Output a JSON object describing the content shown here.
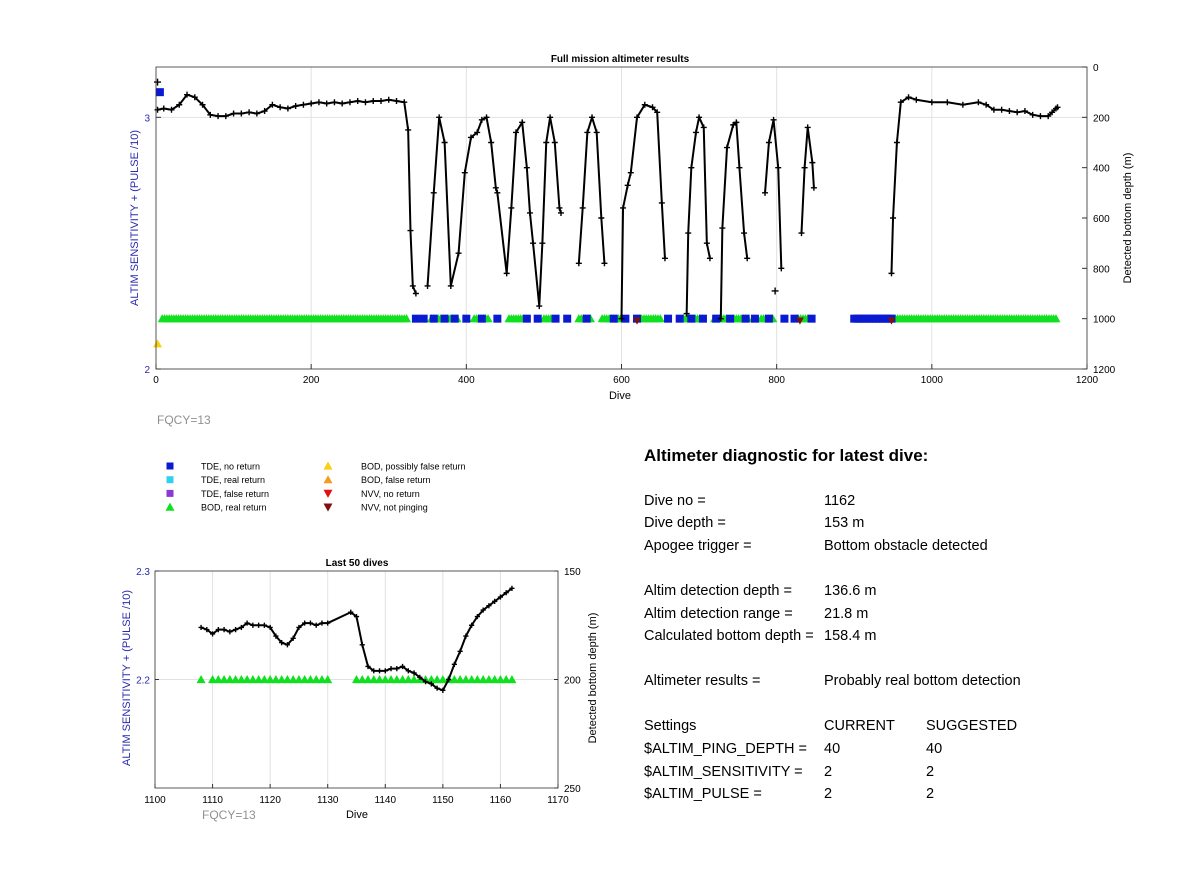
{
  "colors": {
    "left_axis": "#2a2ab0",
    "tde_no_return": "#0a1ad0",
    "tde_real_return": "#30d0f0",
    "tde_false_return": "#8a3ad0",
    "bod_real_return": "#10e020",
    "bod_possibly_false": "#f8d010",
    "bod_false_return": "#f89a20",
    "nvv_no_return": "#e01010",
    "nvv_not_pinging": "#801010",
    "depth_line": "#000000",
    "fqcy_text": "#909090"
  },
  "legend": [
    {
      "label": "TDE, no return",
      "marker": "square",
      "color_key": "tde_no_return"
    },
    {
      "label": "TDE, real return",
      "marker": "square",
      "color_key": "tde_real_return"
    },
    {
      "label": "TDE, false return",
      "marker": "square",
      "color_key": "tde_false_return"
    },
    {
      "label": "BOD, real return",
      "marker": "triangle-up",
      "color_key": "bod_real_return"
    },
    {
      "label": "BOD, possibly false return",
      "marker": "triangle-up",
      "color_key": "bod_possibly_false"
    },
    {
      "label": "BOD, false return",
      "marker": "triangle-up",
      "color_key": "bod_false_return"
    },
    {
      "label": "NVV, no return",
      "marker": "triangle-down",
      "color_key": "nvv_no_return"
    },
    {
      "label": "NVV, not pinging",
      "marker": "triangle-down",
      "color_key": "nvv_not_pinging"
    }
  ],
  "fqcy_label": "FQCY=13",
  "diagnostic": {
    "title": "Altimeter diagnostic for latest dive:",
    "rows": [
      {
        "label": "Dive no =",
        "value": "1162"
      },
      {
        "label": "Dive depth =",
        "value": "153 m"
      },
      {
        "label": "Apogee trigger =",
        "value": "Bottom obstacle detected"
      },
      {
        "label": "Altim detection depth =",
        "value": "136.6 m"
      },
      {
        "label": "Altim detection range =",
        "value": "21.8 m"
      },
      {
        "label": "Calculated bottom depth =",
        "value": "158.4 m"
      },
      {
        "label": "Altimeter results =",
        "value": "Probably real bottom detection"
      }
    ],
    "settings_header": {
      "label": "Settings",
      "current": "CURRENT",
      "suggested": "SUGGESTED"
    },
    "settings": [
      {
        "label": "$ALTIM_PING_DEPTH =",
        "current": "40",
        "suggested": "40"
      },
      {
        "label": "$ALTIM_SENSITIVITY =",
        "current": "2",
        "suggested": "2"
      },
      {
        "label": "$ALTIM_PULSE =",
        "current": "2",
        "suggested": "2"
      }
    ]
  },
  "chart_data": [
    {
      "type": "scatter",
      "title": "Full mission altimeter results",
      "xlabel": "Dive",
      "ylabel_left": "ALTIM SENSITIVITY + (PULSE /10)",
      "ylabel_right": "Detected bottom depth (m)",
      "xlim": [
        0,
        1200
      ],
      "xticks": [
        0,
        200,
        400,
        600,
        800,
        1000,
        1200
      ],
      "ylim_left": [
        2,
        3.2
      ],
      "yticks_left": [
        2,
        3
      ],
      "ylim_right": [
        1200,
        0
      ],
      "yticks_right": [
        0,
        200,
        400,
        600,
        800,
        1000,
        1200
      ],
      "grid": true,
      "depth_series": {
        "name": "Detected bottom depth (m)",
        "points": [
          [
            2,
            170
          ],
          [
            10,
            165
          ],
          [
            20,
            170
          ],
          [
            30,
            150
          ],
          [
            40,
            110
          ],
          [
            50,
            120
          ],
          [
            60,
            150
          ],
          [
            70,
            190
          ],
          [
            80,
            195
          ],
          [
            90,
            195
          ],
          [
            100,
            185
          ],
          [
            110,
            185
          ],
          [
            120,
            180
          ],
          [
            130,
            185
          ],
          [
            140,
            175
          ],
          [
            150,
            150
          ],
          [
            160,
            160
          ],
          [
            170,
            165
          ],
          [
            180,
            155
          ],
          [
            190,
            150
          ],
          [
            200,
            145
          ],
          [
            210,
            140
          ],
          [
            220,
            145
          ],
          [
            230,
            140
          ],
          [
            240,
            145
          ],
          [
            250,
            140
          ],
          [
            260,
            135
          ],
          [
            270,
            140
          ],
          [
            280,
            135
          ],
          [
            290,
            135
          ],
          [
            300,
            130
          ],
          [
            310,
            135
          ],
          [
            320,
            140
          ],
          [
            325,
            250
          ],
          [
            328,
            650
          ],
          [
            331,
            870
          ],
          [
            335,
            900
          ],
          [
            350,
            870
          ],
          [
            358,
            500
          ],
          [
            365,
            200
          ],
          [
            372,
            300
          ],
          [
            380,
            870
          ],
          [
            390,
            740
          ],
          [
            398,
            420
          ],
          [
            406,
            280
          ],
          [
            414,
            260
          ],
          [
            420,
            210
          ],
          [
            426,
            200
          ],
          [
            432,
            300
          ],
          [
            438,
            480
          ],
          [
            440,
            500
          ],
          [
            452,
            820
          ],
          [
            458,
            560
          ],
          [
            464,
            260
          ],
          [
            472,
            220
          ],
          [
            478,
            400
          ],
          [
            482,
            580
          ],
          [
            486,
            700
          ],
          [
            494,
            950
          ],
          [
            498,
            700
          ],
          [
            503,
            300
          ],
          [
            508,
            200
          ],
          [
            514,
            300
          ],
          [
            520,
            560
          ],
          [
            522,
            580
          ],
          [
            545,
            780
          ],
          [
            550,
            560
          ],
          [
            556,
            260
          ],
          [
            562,
            200
          ],
          [
            568,
            260
          ],
          [
            574,
            600
          ],
          [
            578,
            780
          ],
          [
            600,
            1000
          ],
          [
            602,
            560
          ],
          [
            608,
            470
          ],
          [
            612,
            420
          ],
          [
            620,
            200
          ],
          [
            630,
            150
          ],
          [
            640,
            160
          ],
          [
            646,
            180
          ],
          [
            652,
            540
          ],
          [
            656,
            760
          ],
          [
            684,
            980
          ],
          [
            686,
            660
          ],
          [
            690,
            400
          ],
          [
            696,
            260
          ],
          [
            700,
            200
          ],
          [
            706,
            240
          ],
          [
            710,
            700
          ],
          [
            714,
            760
          ],
          [
            728,
            1000
          ],
          [
            730,
            640
          ],
          [
            736,
            320
          ],
          [
            744,
            230
          ],
          [
            748,
            220
          ],
          [
            752,
            400
          ],
          [
            758,
            660
          ],
          [
            762,
            760
          ],
          [
            785,
            500
          ],
          [
            790,
            300
          ],
          [
            796,
            210
          ],
          [
            802,
            400
          ],
          [
            806,
            800
          ],
          [
            832,
            660
          ],
          [
            836,
            400
          ],
          [
            840,
            240
          ],
          [
            846,
            380
          ],
          [
            848,
            480
          ],
          [
            948,
            820
          ],
          [
            950,
            600
          ],
          [
            955,
            300
          ],
          [
            960,
            140
          ],
          [
            970,
            120
          ],
          [
            980,
            130
          ],
          [
            1000,
            140
          ],
          [
            1020,
            140
          ],
          [
            1040,
            150
          ],
          [
            1060,
            140
          ],
          [
            1070,
            150
          ],
          [
            1080,
            170
          ],
          [
            1090,
            170
          ],
          [
            1100,
            175
          ],
          [
            1110,
            180
          ],
          [
            1120,
            175
          ],
          [
            1130,
            190
          ],
          [
            1140,
            195
          ],
          [
            1150,
            195
          ],
          [
            1155,
            180
          ],
          [
            1160,
            165
          ],
          [
            1162,
            160
          ]
        ],
        "outliers": [
          [
            2,
            60
          ],
          [
            798,
            890
          ]
        ]
      },
      "tde_no_return_at_2_2": [
        [
          335,
          1160
        ],
        [
          848,
          1160
        ],
        [
          900,
          950
        ]
      ],
      "bod_real_return_at_2_2": [
        [
          8,
          325
        ],
        [
          355,
          390
        ],
        [
          410,
          430
        ],
        [
          455,
          475
        ],
        [
          500,
          510
        ],
        [
          545,
          560
        ],
        [
          575,
          600
        ],
        [
          620,
          650
        ],
        [
          680,
          705
        ],
        [
          720,
          735
        ],
        [
          745,
          765
        ],
        [
          780,
          795
        ],
        [
          825,
          840
        ],
        [
          950,
          1160
        ]
      ],
      "markers_extra": [
        {
          "series": "TDE, no return",
          "x": 5,
          "y": 3.1
        },
        {
          "series": "BOD, possibly false return",
          "x": 2,
          "y": 2.1
        },
        {
          "series": "NVV, not pinging",
          "x": 620,
          "y": 2.2
        },
        {
          "series": "NVV, not pinging",
          "x": 830,
          "y": 2.2
        },
        {
          "series": "NVV, not pinging",
          "x": 948,
          "y": 2.2
        }
      ]
    },
    {
      "type": "scatter",
      "title": "Last 50 dives",
      "xlabel": "Dive",
      "ylabel_left": "ALTIM SENSITIVITY + (PULSE /10)",
      "ylabel_right": "Detected bottom depth (m)",
      "xlim": [
        1100,
        1170
      ],
      "xticks": [
        1100,
        1110,
        1120,
        1130,
        1140,
        1150,
        1160,
        1170
      ],
      "ylim_left": [
        2.1,
        2.3
      ],
      "yticks_left": [
        2.2,
        2.3
      ],
      "ylim_right": [
        250,
        150
      ],
      "yticks_right": [
        150,
        200,
        250
      ],
      "grid": true,
      "depth_series": {
        "name": "Detected bottom depth (m)",
        "x": [
          1108,
          1109,
          1110,
          1111,
          1112,
          1113,
          1114,
          1115,
          1116,
          1117,
          1118,
          1119,
          1120,
          1121,
          1122,
          1123,
          1124,
          1125,
          1126,
          1127,
          1128,
          1129,
          1130,
          1134,
          1135,
          1136,
          1137,
          1138,
          1139,
          1140,
          1141,
          1142,
          1143,
          1144,
          1145,
          1146,
          1147,
          1148,
          1149,
          1150,
          1151,
          1152,
          1153,
          1154,
          1155,
          1156,
          1157,
          1158,
          1159,
          1160,
          1161,
          1162
        ],
        "y": [
          176,
          177,
          179,
          177,
          177,
          178,
          177,
          176,
          174,
          175,
          175,
          175,
          176,
          180,
          183,
          184,
          181,
          176,
          174,
          174,
          175,
          174,
          174,
          169,
          171,
          184,
          194,
          196,
          196,
          196,
          195,
          195,
          194,
          196,
          197,
          199,
          201,
          202,
          204,
          205,
          200,
          193,
          187,
          180,
          175,
          171,
          168,
          166,
          164,
          162,
          160,
          158
        ]
      },
      "bod_real_return_x": [
        1108,
        1110,
        1111,
        1112,
        1113,
        1114,
        1115,
        1116,
        1117,
        1118,
        1119,
        1120,
        1121,
        1122,
        1123,
        1124,
        1125,
        1126,
        1127,
        1128,
        1129,
        1130,
        1135,
        1136,
        1137,
        1138,
        1139,
        1140,
        1141,
        1142,
        1143,
        1144,
        1145,
        1146,
        1147,
        1148,
        1149,
        1150,
        1151,
        1152,
        1153,
        1154,
        1155,
        1156,
        1157,
        1158,
        1159,
        1160,
        1161,
        1162
      ],
      "bod_level": 2.2
    }
  ]
}
